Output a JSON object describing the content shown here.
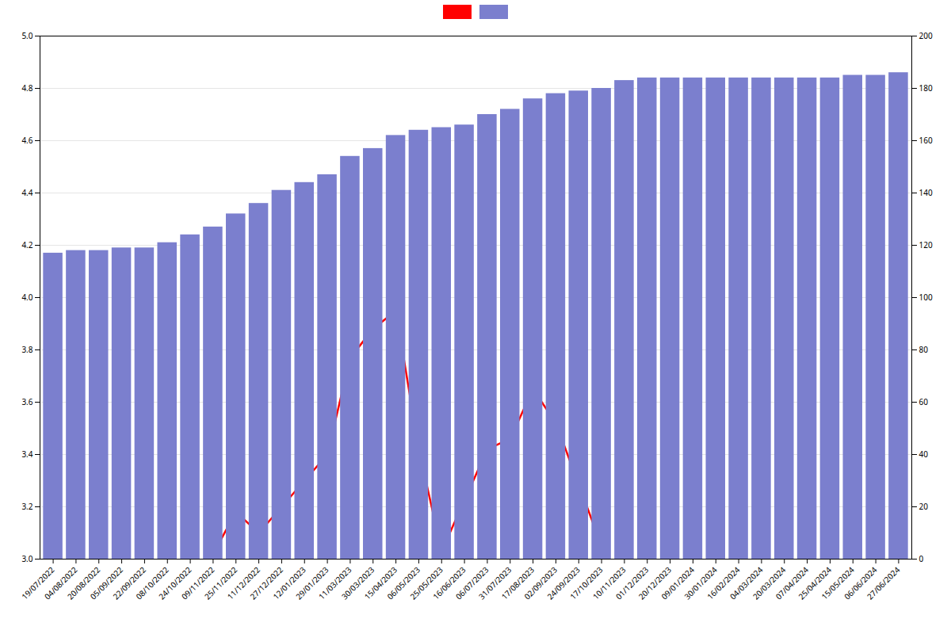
{
  "chart_data": {
    "type": "bar",
    "categories": [
      "19/07/2022",
      "04/08/2022",
      "20/08/2022",
      "05/09/2022",
      "22/09/2022",
      "08/10/2022",
      "24/10/2022",
      "09/11/2022",
      "25/11/2022",
      "11/12/2022",
      "27/12/2022",
      "12/01/2023",
      "29/01/2023",
      "11/03/2023",
      "30/03/2023",
      "15/04/2023",
      "06/05/2023",
      "25/05/2023",
      "16/06/2023",
      "06/07/2023",
      "31/07/2023",
      "17/08/2023",
      "02/09/2023",
      "24/09/2023",
      "17/10/2023",
      "10/11/2023",
      "01/12/2023",
      "20/12/2023",
      "09/01/2024",
      "30/01/2024",
      "16/02/2024",
      "04/03/2024",
      "20/03/2024",
      "07/04/2024",
      "25/04/2024",
      "15/05/2024",
      "06/06/2024",
      "27/06/2024"
    ],
    "series": [
      {
        "type": "line",
        "color": "#ff0000",
        "values": [
          null,
          null,
          null,
          null,
          null,
          null,
          null,
          3.02,
          3.18,
          3.1,
          null,
          null,
          3.4,
          3.77,
          3.88,
          3.95,
          3.42,
          3.03,
          null,
          3.42,
          3.46,
          3.65,
          3.52,
          null,
          3.05,
          null,
          null,
          null,
          null,
          null,
          null,
          null,
          null,
          null,
          null,
          null,
          null,
          null
        ]
      },
      {
        "type": "bar",
        "color": "#7b7fce",
        "values": [
          4.17,
          4.18,
          4.18,
          4.19,
          4.19,
          4.21,
          4.24,
          4.27,
          4.32,
          4.36,
          4.41,
          4.44,
          4.47,
          4.54,
          4.57,
          4.62,
          4.64,
          4.65,
          4.66,
          4.7,
          4.72,
          4.76,
          4.78,
          4.79,
          4.8,
          4.83,
          4.84,
          4.84,
          4.84,
          4.84,
          4.84,
          4.84,
          4.84,
          4.84,
          4.84,
          4.85,
          4.85,
          4.86
        ]
      }
    ],
    "ylim": [
      3.0,
      5.0
    ],
    "yticks": [
      {
        "value": 3.0,
        "label": "3.0"
      },
      3.2,
      3.4,
      3.6,
      3.8,
      {
        "value": 4.0,
        "label": "4.0"
      },
      4.2,
      4.4,
      4.6,
      4.8,
      {
        "value": 5.0,
        "label": "5.0"
      }
    ],
    "y2lim": [
      0,
      200
    ],
    "y2ticks": [
      0,
      20,
      40,
      60,
      80,
      100,
      120,
      140,
      160,
      180,
      200
    ],
    "grid": true,
    "legend": "upper center"
  }
}
